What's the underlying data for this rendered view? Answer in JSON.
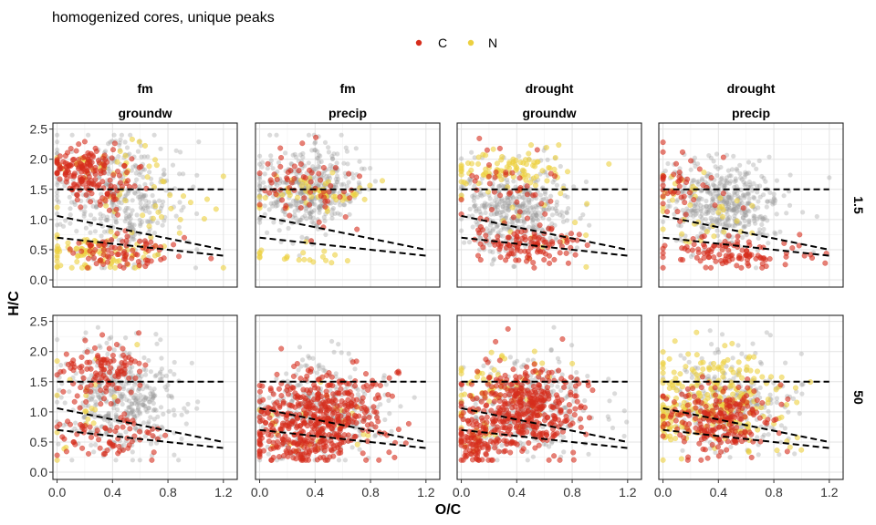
{
  "chart_data": {
    "type": "scatter",
    "title": "homogenized cores, unique peaks",
    "xlabel": "O/C",
    "ylabel": "H/C",
    "xlim": [
      -0.03,
      1.3
    ],
    "ylim": [
      -0.12,
      2.6
    ],
    "x_ticks": [
      "0.0",
      "0.4",
      "0.8",
      "1.2"
    ],
    "y_ticks": [
      "0.0",
      "0.5",
      "1.0",
      "1.5",
      "2.0",
      "2.5"
    ],
    "legend": {
      "position": "top",
      "entries": [
        {
          "label": "C",
          "color": "#d62d1c"
        },
        {
          "label": "N",
          "color": "#ecd040"
        }
      ]
    },
    "background_color": "#999999",
    "column_facets": [
      {
        "line1": "fm",
        "line2": "groundw"
      },
      {
        "line1": "fm",
        "line2": "precip"
      },
      {
        "line1": "drought",
        "line2": "groundw"
      },
      {
        "line1": "drought",
        "line2": "precip"
      }
    ],
    "row_facets": [
      "1.5",
      "50"
    ],
    "reference_lines": [
      {
        "type": "horizontal",
        "y": 1.5,
        "x_range": [
          0,
          1.2
        ]
      },
      {
        "type": "line",
        "x": [
          0,
          1.2
        ],
        "y": [
          1.06,
          0.5
        ]
      },
      {
        "type": "line",
        "x": [
          0,
          1.2
        ],
        "y": [
          0.7,
          0.4
        ]
      }
    ],
    "panels": [
      {
        "row": 0,
        "col": 0,
        "bg_n": 380,
        "bg_cx": 0.45,
        "bg_cy": 1.35,
        "bg_sx": 0.22,
        "bg_sy": 0.5,
        "c_clusters": [
          {
            "n": 110,
            "cx": 0.15,
            "cy": 1.85,
            "sx": 0.1,
            "sy": 0.18
          },
          {
            "n": 70,
            "cx": 0.35,
            "cy": 1.6,
            "sx": 0.15,
            "sy": 0.25
          },
          {
            "n": 80,
            "cx": 0.45,
            "cy": 0.45,
            "sx": 0.25,
            "sy": 0.15
          }
        ],
        "n_clusters": [
          {
            "n": 70,
            "cx": 0.2,
            "cy": 0.4,
            "sx": 0.2,
            "sy": 0.15
          },
          {
            "n": 60,
            "cx": 0.6,
            "cy": 1.2,
            "sx": 0.3,
            "sy": 0.5
          },
          {
            "n": 25,
            "cx": 0.3,
            "cy": 2.0,
            "sx": 0.2,
            "sy": 0.1
          }
        ]
      },
      {
        "row": 0,
        "col": 1,
        "bg_n": 420,
        "bg_cx": 0.35,
        "bg_cy": 1.5,
        "bg_sx": 0.18,
        "bg_sy": 0.35,
        "c_clusters": [
          {
            "n": 45,
            "cx": 0.25,
            "cy": 1.7,
            "sx": 0.15,
            "sy": 0.3
          },
          {
            "n": 20,
            "cx": 0.5,
            "cy": 1.2,
            "sx": 0.2,
            "sy": 0.3
          }
        ],
        "n_clusters": [
          {
            "n": 55,
            "cx": 0.4,
            "cy": 1.4,
            "sx": 0.2,
            "sy": 0.15
          },
          {
            "n": 20,
            "cx": 0.3,
            "cy": 0.4,
            "sx": 0.2,
            "sy": 0.1
          }
        ]
      },
      {
        "row": 0,
        "col": 2,
        "bg_n": 420,
        "bg_cx": 0.4,
        "bg_cy": 1.15,
        "bg_sx": 0.2,
        "bg_sy": 0.35,
        "c_clusters": [
          {
            "n": 110,
            "cx": 0.5,
            "cy": 0.6,
            "sx": 0.2,
            "sy": 0.15
          },
          {
            "n": 45,
            "cx": 0.3,
            "cy": 1.6,
            "sx": 0.2,
            "sy": 0.3
          }
        ],
        "n_clusters": [
          {
            "n": 90,
            "cx": 0.3,
            "cy": 1.8,
            "sx": 0.2,
            "sy": 0.15
          },
          {
            "n": 20,
            "cx": 0.6,
            "cy": 1.0,
            "sx": 0.3,
            "sy": 0.4
          }
        ]
      },
      {
        "row": 0,
        "col": 3,
        "bg_n": 460,
        "bg_cx": 0.45,
        "bg_cy": 1.25,
        "bg_sx": 0.2,
        "bg_sy": 0.35,
        "c_clusters": [
          {
            "n": 110,
            "cx": 0.5,
            "cy": 0.45,
            "sx": 0.25,
            "sy": 0.15
          },
          {
            "n": 45,
            "cx": 0.15,
            "cy": 1.6,
            "sx": 0.15,
            "sy": 0.3
          }
        ],
        "n_clusters": [
          {
            "n": 40,
            "cx": 0.3,
            "cy": 1.1,
            "sx": 0.2,
            "sy": 0.3
          }
        ]
      },
      {
        "row": 1,
        "col": 0,
        "bg_n": 420,
        "bg_cx": 0.45,
        "bg_cy": 1.2,
        "bg_sx": 0.2,
        "bg_sy": 0.4,
        "c_clusters": [
          {
            "n": 110,
            "cx": 0.3,
            "cy": 1.7,
            "sx": 0.15,
            "sy": 0.25
          },
          {
            "n": 70,
            "cx": 0.35,
            "cy": 0.6,
            "sx": 0.2,
            "sy": 0.2
          }
        ],
        "n_clusters": [
          {
            "n": 20,
            "cx": 0.2,
            "cy": 1.0,
            "sx": 0.2,
            "sy": 0.5
          }
        ]
      },
      {
        "row": 1,
        "col": 1,
        "bg_n": 320,
        "bg_cx": 0.45,
        "bg_cy": 1.0,
        "bg_sx": 0.25,
        "bg_sy": 0.4,
        "c_clusters": [
          {
            "n": 420,
            "cx": 0.45,
            "cy": 0.95,
            "sx": 0.22,
            "sy": 0.35
          },
          {
            "n": 80,
            "cx": 0.2,
            "cy": 0.45,
            "sx": 0.15,
            "sy": 0.15
          }
        ],
        "n_clusters": [
          {
            "n": 25,
            "cx": 0.4,
            "cy": 0.8,
            "sx": 0.2,
            "sy": 0.3
          }
        ]
      },
      {
        "row": 1,
        "col": 2,
        "bg_n": 320,
        "bg_cx": 0.45,
        "bg_cy": 1.1,
        "bg_sx": 0.25,
        "bg_sy": 0.4,
        "c_clusters": [
          {
            "n": 400,
            "cx": 0.45,
            "cy": 1.05,
            "sx": 0.2,
            "sy": 0.35
          },
          {
            "n": 80,
            "cx": 0.1,
            "cy": 0.5,
            "sx": 0.08,
            "sy": 0.2
          }
        ],
        "n_clusters": [
          {
            "n": 55,
            "cx": 0.3,
            "cy": 1.5,
            "sx": 0.2,
            "sy": 0.3
          },
          {
            "n": 20,
            "cx": 0.1,
            "cy": 0.6,
            "sx": 0.1,
            "sy": 0.2
          }
        ]
      },
      {
        "row": 1,
        "col": 3,
        "bg_n": 300,
        "bg_cx": 0.5,
        "bg_cy": 1.2,
        "bg_sx": 0.22,
        "bg_sy": 0.4,
        "c_clusters": [
          {
            "n": 220,
            "cx": 0.4,
            "cy": 0.85,
            "sx": 0.18,
            "sy": 0.28
          }
        ],
        "n_clusters": [
          {
            "n": 220,
            "cx": 0.4,
            "cy": 1.2,
            "sx": 0.22,
            "sy": 0.4
          },
          {
            "n": 40,
            "cx": 0.05,
            "cy": 0.8,
            "sx": 0.05,
            "sy": 0.3
          }
        ]
      }
    ]
  }
}
